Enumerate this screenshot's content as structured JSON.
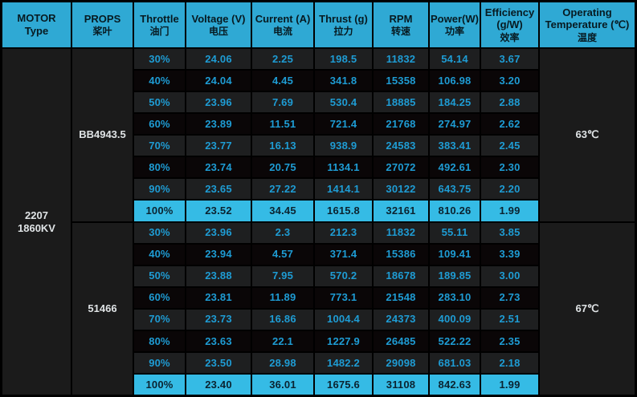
{
  "colors": {
    "header_bg": "#2fa9d4",
    "header_text": "#071a21",
    "highlight_bg": "#35bbe5",
    "highlight_text": "#0b2330",
    "stripe_a": "#1e1f20",
    "stripe_b": "#0a0607",
    "data_text": "#1e9cd4",
    "side_bg": "#1b1b1b",
    "side_text": "#e0e4e6",
    "grid_line": "#000000"
  },
  "table": {
    "headers": [
      {
        "line1": "MOTOR",
        "line2": "Type"
      },
      {
        "line1": "PROPS",
        "zh": "桨叶"
      },
      {
        "line1": "Throttle",
        "zh": "油门"
      },
      {
        "line1": "Voltage (V)",
        "zh": "电压"
      },
      {
        "line1": "Current (A)",
        "zh": "电流"
      },
      {
        "line1": "Thrust (g)",
        "zh": "拉力"
      },
      {
        "line1": "RPM",
        "zh": "转速"
      },
      {
        "line1": "Power(W)",
        "zh": "功率"
      },
      {
        "line1": "Efficiency",
        "line2": "(g/W)",
        "zh": "效率"
      },
      {
        "line1": "Operating",
        "line2": "Temperature (℃)",
        "zh": "温度"
      }
    ],
    "motor": {
      "line1": "2207",
      "line2": "1860KV"
    },
    "groups": [
      {
        "prop": "BB4943.5",
        "temperature": "63℃",
        "rows": [
          {
            "throttle": "30%",
            "voltage": "24.06",
            "current": "2.25",
            "thrust": "198.5",
            "rpm": "11832",
            "power": "54.14",
            "efficiency": "3.67"
          },
          {
            "throttle": "40%",
            "voltage": "24.04",
            "current": "4.45",
            "thrust": "341.8",
            "rpm": "15358",
            "power": "106.98",
            "efficiency": "3.20"
          },
          {
            "throttle": "50%",
            "voltage": "23.96",
            "current": "7.69",
            "thrust": "530.4",
            "rpm": "18885",
            "power": "184.25",
            "efficiency": "2.88"
          },
          {
            "throttle": "60%",
            "voltage": "23.89",
            "current": "11.51",
            "thrust": "721.4",
            "rpm": "21768",
            "power": "274.97",
            "efficiency": "2.62"
          },
          {
            "throttle": "70%",
            "voltage": "23.77",
            "current": "16.13",
            "thrust": "938.9",
            "rpm": "24583",
            "power": "383.41",
            "efficiency": "2.45"
          },
          {
            "throttle": "80%",
            "voltage": "23.74",
            "current": "20.75",
            "thrust": "1134.1",
            "rpm": "27072",
            "power": "492.61",
            "efficiency": "2.30"
          },
          {
            "throttle": "90%",
            "voltage": "23.65",
            "current": "27.22",
            "thrust": "1414.1",
            "rpm": "30122",
            "power": "643.75",
            "efficiency": "2.20"
          },
          {
            "throttle": "100%",
            "voltage": "23.52",
            "current": "34.45",
            "thrust": "1615.8",
            "rpm": "32161",
            "power": "810.26",
            "efficiency": "1.99",
            "highlight": true
          }
        ]
      },
      {
        "prop": "51466",
        "temperature": "67℃",
        "rows": [
          {
            "throttle": "30%",
            "voltage": "23.96",
            "current": "2.3",
            "thrust": "212.3",
            "rpm": "11832",
            "power": "55.11",
            "efficiency": "3.85"
          },
          {
            "throttle": "40%",
            "voltage": "23.94",
            "current": "4.57",
            "thrust": "371.4",
            "rpm": "15386",
            "power": "109.41",
            "efficiency": "3.39"
          },
          {
            "throttle": "50%",
            "voltage": "23.88",
            "current": "7.95",
            "thrust": "570.2",
            "rpm": "18678",
            "power": "189.85",
            "efficiency": "3.00"
          },
          {
            "throttle": "60%",
            "voltage": "23.81",
            "current": "11.89",
            "thrust": "773.1",
            "rpm": "21548",
            "power": "283.10",
            "efficiency": "2.73"
          },
          {
            "throttle": "70%",
            "voltage": "23.73",
            "current": "16.86",
            "thrust": "1004.4",
            "rpm": "24373",
            "power": "400.09",
            "efficiency": "2.51"
          },
          {
            "throttle": "80%",
            "voltage": "23.63",
            "current": "22.1",
            "thrust": "1227.9",
            "rpm": "26485",
            "power": "522.22",
            "efficiency": "2.35"
          },
          {
            "throttle": "90%",
            "voltage": "23.50",
            "current": "28.98",
            "thrust": "1482.2",
            "rpm": "29098",
            "power": "681.03",
            "efficiency": "2.18"
          },
          {
            "throttle": "100%",
            "voltage": "23.40",
            "current": "36.01",
            "thrust": "1675.6",
            "rpm": "31108",
            "power": "842.63",
            "efficiency": "1.99",
            "highlight": true
          }
        ]
      }
    ]
  },
  "chart_data": {
    "type": "table",
    "columns": [
      "MOTOR Type",
      "PROPS 桨叶",
      "Throttle 油门",
      "Voltage (V) 电压",
      "Current (A) 电流",
      "Thrust (g) 拉力",
      "RPM 转速",
      "Power(W) 功率",
      "Efficiency (g/W) 效率",
      "Operating Temperature (℃) 温度"
    ],
    "rows": [
      [
        "2207 1860KV",
        "BB4943.5",
        "30%",
        24.06,
        2.25,
        198.5,
        11832,
        54.14,
        3.67,
        "63℃"
      ],
      [
        "2207 1860KV",
        "BB4943.5",
        "40%",
        24.04,
        4.45,
        341.8,
        15358,
        106.98,
        3.2,
        "63℃"
      ],
      [
        "2207 1860KV",
        "BB4943.5",
        "50%",
        23.96,
        7.69,
        530.4,
        18885,
        184.25,
        2.88,
        "63℃"
      ],
      [
        "2207 1860KV",
        "BB4943.5",
        "60%",
        23.89,
        11.51,
        721.4,
        21768,
        274.97,
        2.62,
        "63℃"
      ],
      [
        "2207 1860KV",
        "BB4943.5",
        "70%",
        23.77,
        16.13,
        938.9,
        24583,
        383.41,
        2.45,
        "63℃"
      ],
      [
        "2207 1860KV",
        "BB4943.5",
        "80%",
        23.74,
        20.75,
        1134.1,
        27072,
        492.61,
        2.3,
        "63℃"
      ],
      [
        "2207 1860KV",
        "BB4943.5",
        "90%",
        23.65,
        27.22,
        1414.1,
        30122,
        643.75,
        2.2,
        "63℃"
      ],
      [
        "2207 1860KV",
        "BB4943.5",
        "100%",
        23.52,
        34.45,
        1615.8,
        32161,
        810.26,
        1.99,
        "63℃"
      ],
      [
        "2207 1860KV",
        "51466",
        "30%",
        23.96,
        2.3,
        212.3,
        11832,
        55.11,
        3.85,
        "67℃"
      ],
      [
        "2207 1860KV",
        "51466",
        "40%",
        23.94,
        4.57,
        371.4,
        15386,
        109.41,
        3.39,
        "67℃"
      ],
      [
        "2207 1860KV",
        "51466",
        "50%",
        23.88,
        7.95,
        570.2,
        18678,
        189.85,
        3.0,
        "67℃"
      ],
      [
        "2207 1860KV",
        "51466",
        "60%",
        23.81,
        11.89,
        773.1,
        21548,
        283.1,
        2.73,
        "67℃"
      ],
      [
        "2207 1860KV",
        "51466",
        "70%",
        23.73,
        16.86,
        1004.4,
        24373,
        400.09,
        2.51,
        "67℃"
      ],
      [
        "2207 1860KV",
        "51466",
        "80%",
        23.63,
        22.1,
        1227.9,
        26485,
        522.22,
        2.35,
        "67℃"
      ],
      [
        "2207 1860KV",
        "51466",
        "90%",
        23.5,
        28.98,
        1482.2,
        29098,
        681.03,
        2.18,
        "67℃"
      ],
      [
        "2207 1860KV",
        "51466",
        "100%",
        23.4,
        36.01,
        1675.6,
        31108,
        842.63,
        1.99,
        "67℃"
      ]
    ],
    "layout_hints": {
      "highlighted_rows": "100% throttle rows",
      "header_color": "#2fa9d4",
      "grid": true
    }
  }
}
